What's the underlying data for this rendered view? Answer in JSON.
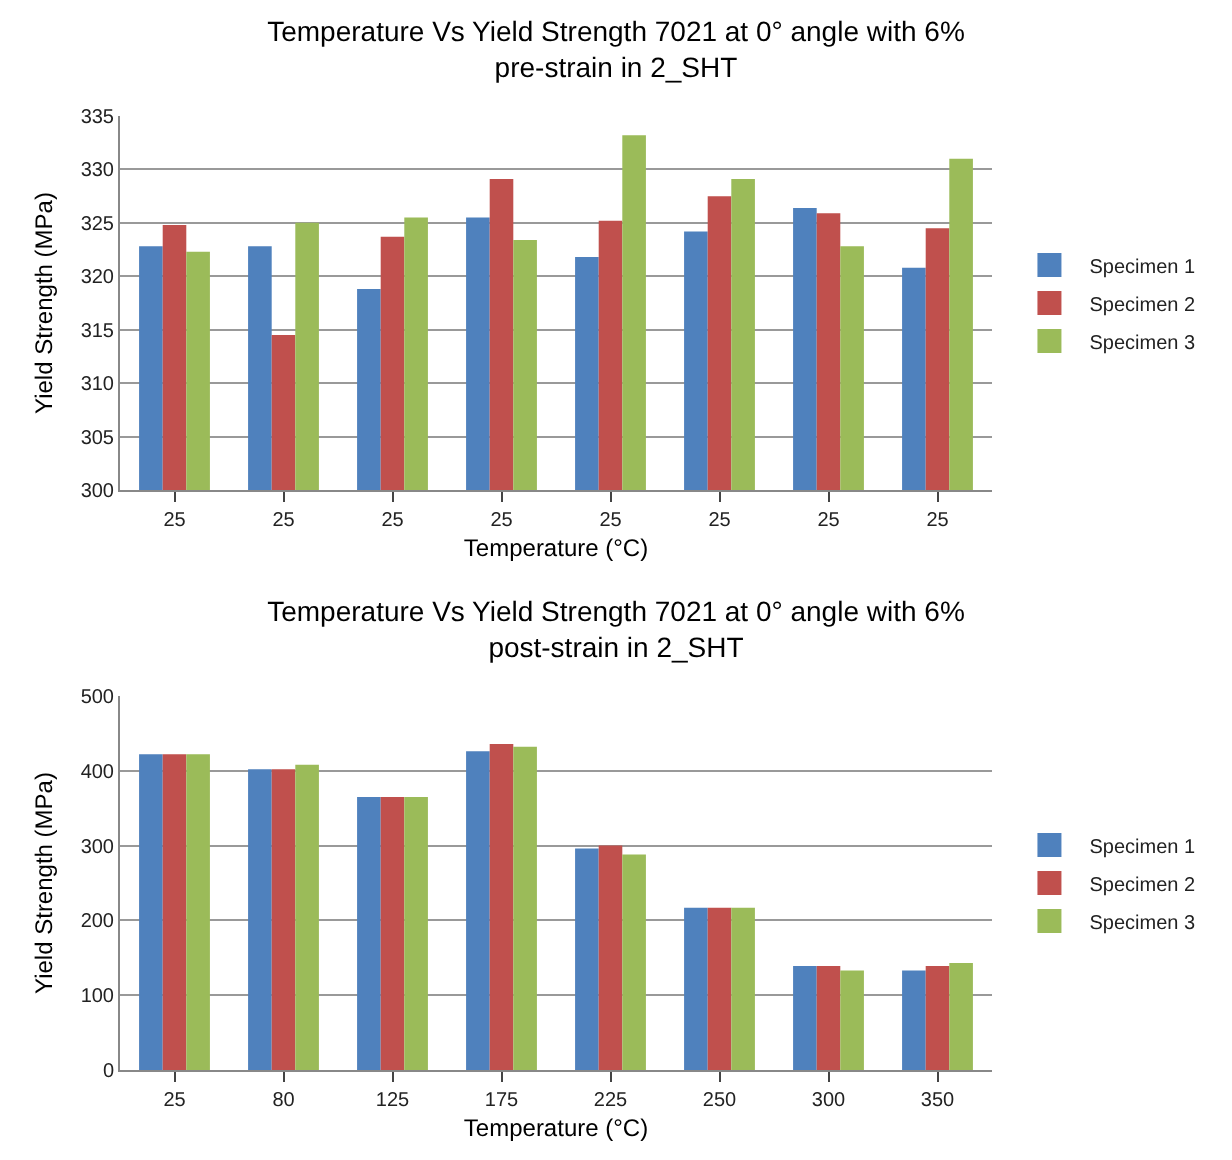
{
  "chart_data": [
    {
      "type": "bar",
      "title": "Temperature Vs Yield Strength 7021 at 0° angle with 6% pre-strain in 2_SHT",
      "xlabel": "Temperature (°C)",
      "ylabel": "Yield Strength (MPa)",
      "categories": [
        "25",
        "25",
        "25",
        "25",
        "25",
        "25",
        "25",
        "25"
      ],
      "series": [
        {
          "name": "Specimen 1",
          "color": "#4f81bd",
          "values": [
            322.8,
            322.8,
            318.8,
            325.5,
            321.8,
            324.2,
            326.4,
            320.8
          ]
        },
        {
          "name": "Specimen 2",
          "color": "#c0504d",
          "values": [
            324.8,
            314.5,
            323.7,
            329.1,
            325.2,
            327.5,
            325.9,
            324.5
          ]
        },
        {
          "name": "Specimen 3",
          "color": "#9bbb59",
          "values": [
            322.3,
            325,
            325.5,
            323.4,
            333.2,
            329.1,
            322.8,
            331
          ]
        }
      ],
      "ylim": [
        300,
        335
      ],
      "yticks": [
        300,
        305,
        310,
        315,
        320,
        325,
        330,
        335
      ],
      "grid": "y",
      "legend": "right"
    },
    {
      "type": "bar",
      "title": "Temperature Vs Yield Strength 7021 at 0° angle with 6% post-strain in 2_SHT",
      "xlabel": "Temperature (°C)",
      "ylabel": "Yield Strength (MPa)",
      "categories": [
        "25",
        "80",
        "125",
        "175",
        "225",
        "250",
        "300",
        "350"
      ],
      "series": [
        {
          "name": "Specimen 1",
          "color": "#4f81bd",
          "values": [
            422,
            402,
            365,
            426,
            296,
            217,
            139,
            133
          ]
        },
        {
          "name": "Specimen 2",
          "color": "#c0504d",
          "values": [
            422,
            402,
            365,
            436,
            300,
            217,
            139,
            139
          ]
        },
        {
          "name": "Specimen 3",
          "color": "#9bbb59",
          "values": [
            422,
            408,
            365,
            432,
            288,
            217,
            133,
            143
          ]
        }
      ],
      "ylim": [
        0,
        500
      ],
      "yticks": [
        0,
        100,
        200,
        300,
        400,
        500
      ],
      "grid": "y",
      "legend": "right"
    }
  ]
}
